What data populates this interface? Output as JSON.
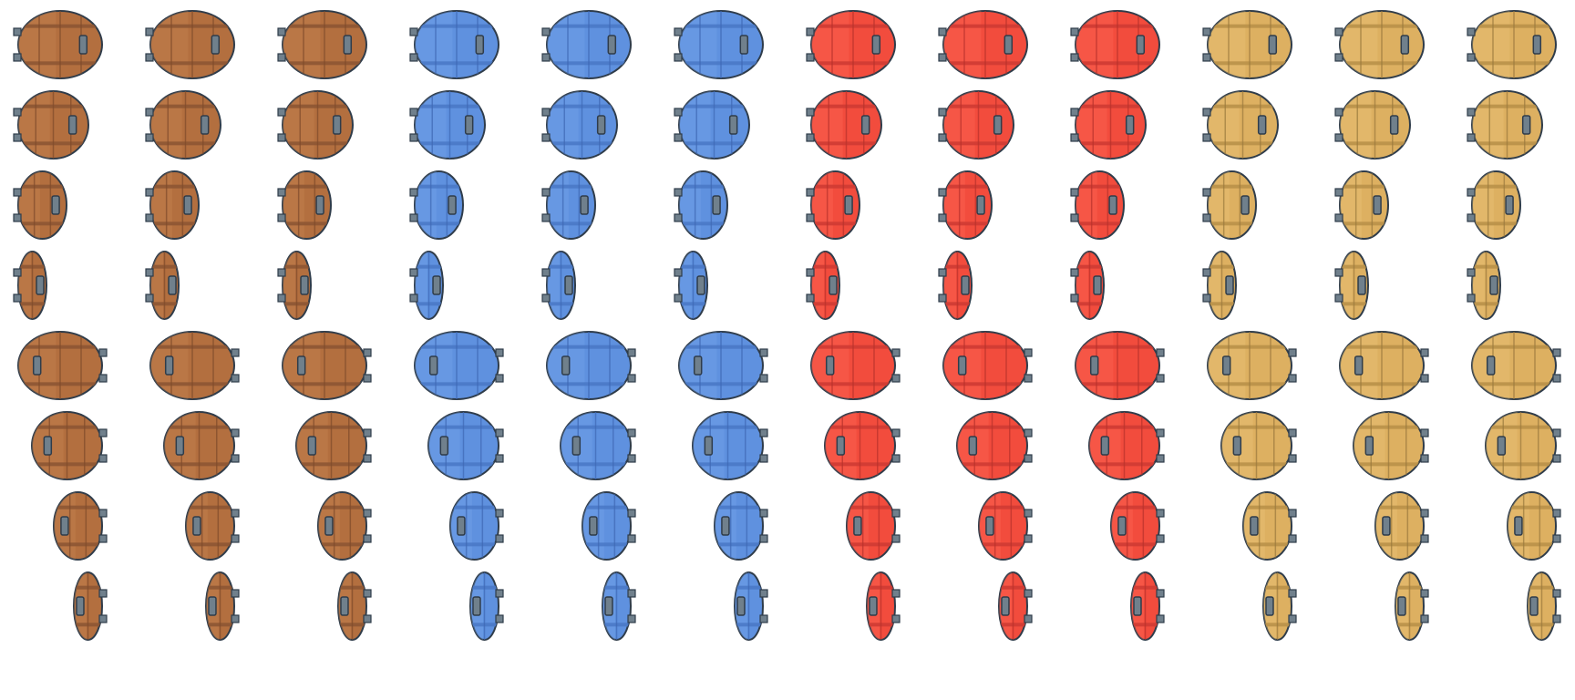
{
  "sprite_sheet": {
    "grid": {
      "rows": 8,
      "cols": 12
    },
    "palettes": [
      {
        "name": "brown",
        "base": "#b36f3f",
        "light": "#c98852",
        "dark": "#7f4b2b",
        "band": "#8d5533"
      },
      {
        "name": "blue",
        "base": "#5f91df",
        "light": "#79a7ea",
        "dark": "#3f69b4",
        "band": "#4a79c7"
      },
      {
        "name": "red",
        "base": "#f24c3d",
        "light": "#ff6a59",
        "dark": "#b8322c",
        "band": "#cf3b33"
      },
      {
        "name": "tan",
        "base": "#ddb061",
        "light": "#ecc57c",
        "dark": "#9b7a3e",
        "band": "#b99149"
      }
    ],
    "outline_color": "#2f3c4a",
    "latch_color": "#70808c",
    "frames": [
      {
        "row": 0,
        "visible_width_ratio": 1.0,
        "facing": "right"
      },
      {
        "row": 1,
        "visible_width_ratio": 0.84,
        "facing": "right"
      },
      {
        "row": 2,
        "visible_width_ratio": 0.58,
        "facing": "right"
      },
      {
        "row": 3,
        "visible_width_ratio": 0.34,
        "facing": "right"
      },
      {
        "row": 4,
        "visible_width_ratio": 1.0,
        "facing": "left"
      },
      {
        "row": 5,
        "visible_width_ratio": 0.84,
        "facing": "left"
      },
      {
        "row": 6,
        "visible_width_ratio": 0.58,
        "facing": "left"
      },
      {
        "row": 7,
        "visible_width_ratio": 0.34,
        "facing": "left"
      }
    ]
  }
}
